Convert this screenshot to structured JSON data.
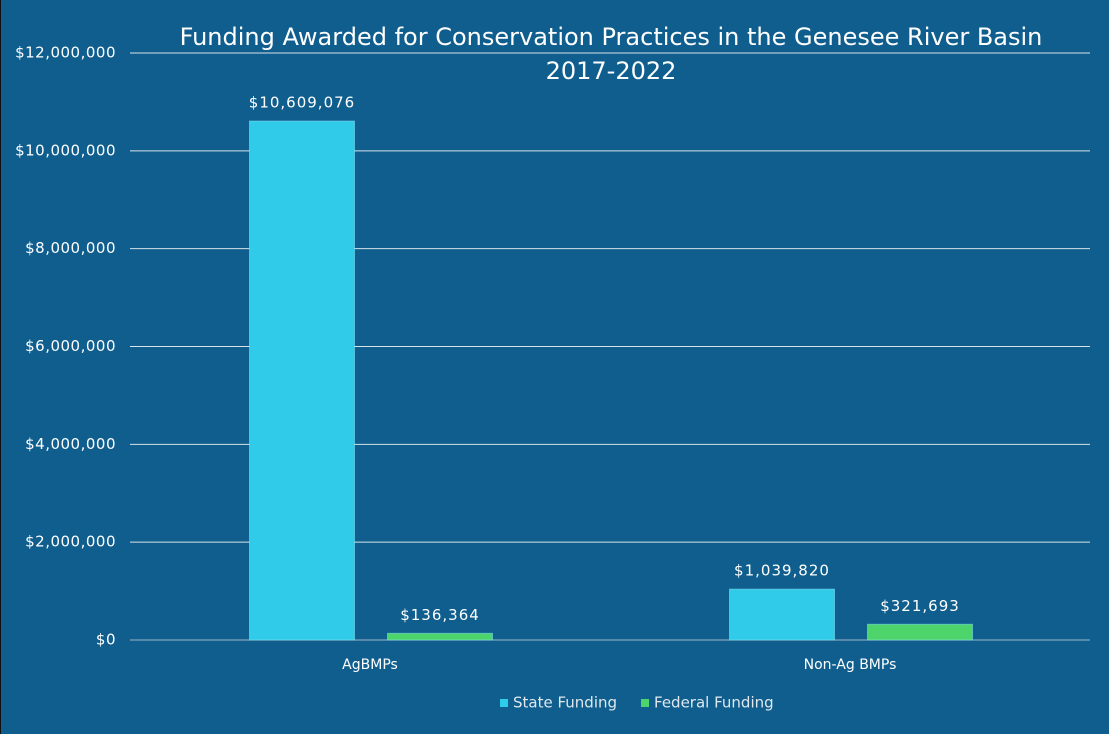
{
  "chart_data": {
    "type": "bar",
    "title": "Funding Awarded for Conservation Practices in the Genesee River Basin",
    "subtitle": "2017-2022",
    "categories": [
      "AgBMPs",
      "Non-Ag BMPs"
    ],
    "series": [
      {
        "name": "State Funding",
        "color": "#2fcbe9",
        "values": [
          10609076,
          1039820
        ],
        "value_labels": [
          "$10,609,076",
          "$1,039,820"
        ]
      },
      {
        "name": "Federal Funding",
        "color": "#4dd56c",
        "values": [
          136364,
          321693
        ],
        "value_labels": [
          "$136,364",
          "$321,693"
        ]
      }
    ],
    "ylim": [
      0,
      12000000
    ],
    "yticks": [
      {
        "value": 0,
        "label": "$0"
      },
      {
        "value": 2000000,
        "label": "$2,000,000"
      },
      {
        "value": 4000000,
        "label": "$4,000,000"
      },
      {
        "value": 6000000,
        "label": "$6,000,000"
      },
      {
        "value": 8000000,
        "label": "$8,000,000"
      },
      {
        "value": 10000000,
        "label": "$10,000,000"
      },
      {
        "value": 12000000,
        "label": "$12,000,000"
      }
    ],
    "grid": true,
    "legend": "bottom"
  }
}
